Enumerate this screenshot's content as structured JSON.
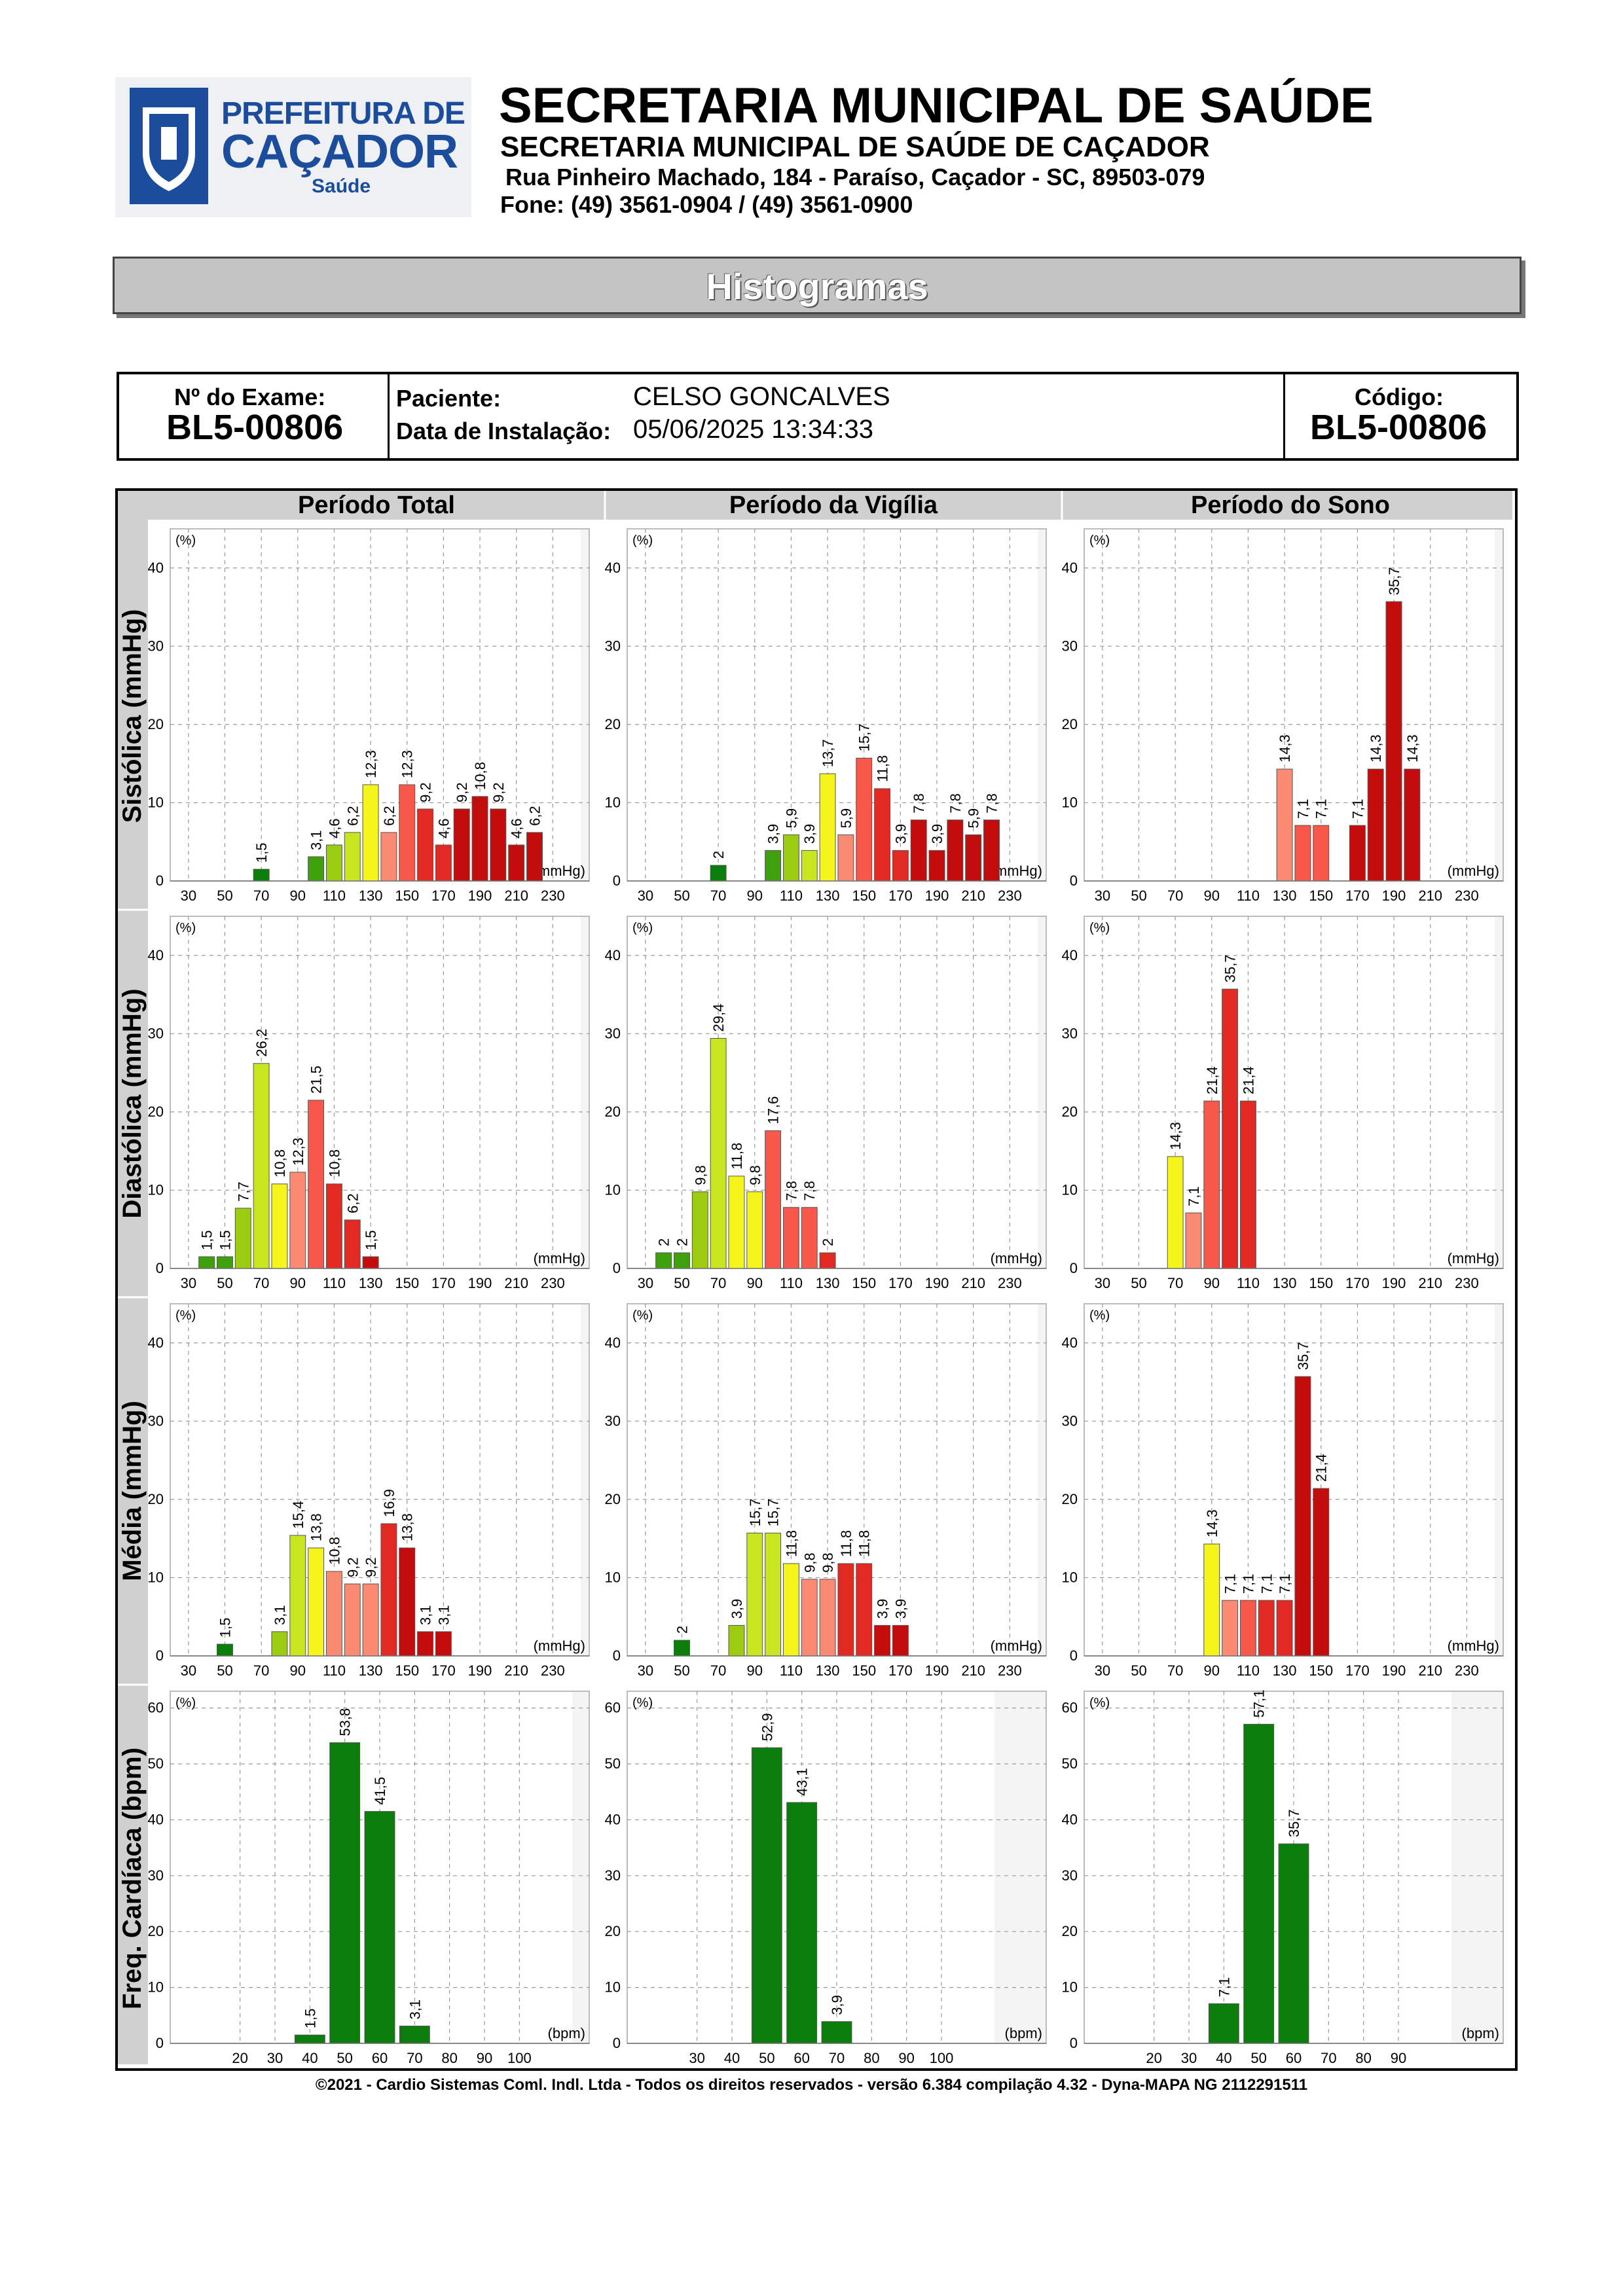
{
  "header": {
    "logo_line1": "PREFEITURA DE",
    "logo_line2": "CAÇADOR",
    "logo_line3": "Saúde",
    "title": "SECRETARIA MUNICIPAL DE SAÚDE",
    "subtitle": "SECRETARIA MUNICIPAL DE SAÚDE DE CAÇADOR",
    "address": "Rua Pinheiro Machado, 184 - Paraíso, Caçador - SC, 89503-079",
    "phone": "Fone: (49) 3561-0904  / (49) 3561-0900"
  },
  "banner": "Histogramas",
  "exam": {
    "exam_label": "Nº do Exame:",
    "exam_number": "BL5-00806",
    "patient_label": "Paciente:",
    "patient_name": "CELSO  GONCALVES",
    "install_label": "Data de Instalação:",
    "install_date": "05/06/2025 13:34:33",
    "code_label": "Código:",
    "code": "BL5-00806"
  },
  "footer": "©2021 - Cardio Sistemas Coml. Indl. Ltda - Todos os direitos reservados - versão 6.384 compilação 4.32 - Dyna-MAPA NG 2112291511",
  "colors": {
    "dark_green": "#0a7d0a",
    "green": "#3fa00e",
    "yellow_green": "#9ccc12",
    "lime": "#c8e620",
    "yellow": "#f5f51c",
    "salmon": "#fa8a72",
    "coral": "#f7584a",
    "red": "#e22a22",
    "dark_red": "#c30d0d",
    "crimson": "#a8070d"
  },
  "chart_data": {
    "columns": [
      "Período Total",
      "Período da Vigília",
      "Período do Sono"
    ],
    "rows": [
      {
        "name": "Sistólica (mmHg)",
        "unit": "(mmHg)",
        "y_unit": "(%)",
        "ylim": [
          0,
          45
        ],
        "yticks": [
          0,
          10,
          20,
          30,
          40
        ],
        "xlim": [
          20,
          250
        ],
        "bin_width": 10,
        "xticks": [
          30,
          50,
          70,
          90,
          110,
          130,
          150,
          170,
          190,
          210,
          230
        ],
        "charts": [
          {
            "bars": [
              [
                70,
                "1,5",
                1.5,
                "dark_green"
              ],
              [
                100,
                "3,1",
                3.1,
                "green"
              ],
              [
                110,
                "4,6",
                4.6,
                "yellow_green"
              ],
              [
                120,
                "6,2",
                6.2,
                "lime"
              ],
              [
                130,
                "12,3",
                12.3,
                "yellow"
              ],
              [
                140,
                "6,2",
                6.2,
                "salmon"
              ],
              [
                150,
                "12,3",
                12.3,
                "coral"
              ],
              [
                160,
                "9,2",
                9.2,
                "red"
              ],
              [
                170,
                "4,6",
                4.6,
                "red"
              ],
              [
                180,
                "9,2",
                9.2,
                "dark_red"
              ],
              [
                190,
                "10,8",
                10.8,
                "dark_red"
              ],
              [
                200,
                "9,2",
                9.2,
                "dark_red"
              ],
              [
                210,
                "4,6",
                4.6,
                "dark_red"
              ],
              [
                220,
                "6,2",
                6.2,
                "dark_red"
              ]
            ]
          },
          {
            "bars": [
              [
                70,
                "2",
                2,
                "dark_green"
              ],
              [
                100,
                "3,9",
                3.9,
                "green"
              ],
              [
                110,
                "5,9",
                5.9,
                "yellow_green"
              ],
              [
                120,
                "3,9",
                3.9,
                "lime"
              ],
              [
                130,
                "13,7",
                13.7,
                "yellow"
              ],
              [
                140,
                "5,9",
                5.9,
                "salmon"
              ],
              [
                150,
                "15,7",
                15.7,
                "coral"
              ],
              [
                160,
                "11,8",
                11.8,
                "red"
              ],
              [
                170,
                "3,9",
                3.9,
                "red"
              ],
              [
                180,
                "7,8",
                7.8,
                "dark_red"
              ],
              [
                190,
                "3,9",
                3.9,
                "dark_red"
              ],
              [
                200,
                "7,8",
                7.8,
                "dark_red"
              ],
              [
                210,
                "5,9",
                5.9,
                "dark_red"
              ],
              [
                220,
                "7,8",
                7.8,
                "dark_red"
              ]
            ]
          },
          {
            "bars": [
              [
                130,
                "14,3",
                14.3,
                "salmon"
              ],
              [
                140,
                "7,1",
                7.1,
                "coral"
              ],
              [
                150,
                "7,1",
                7.1,
                "coral"
              ],
              [
                170,
                "7,1",
                7.1,
                "dark_red"
              ],
              [
                180,
                "14,3",
                14.3,
                "dark_red"
              ],
              [
                190,
                "35,7",
                35.7,
                "dark_red"
              ],
              [
                200,
                "14,3",
                14.3,
                "dark_red"
              ]
            ]
          }
        ]
      },
      {
        "name": "Diastólica (mmHg)",
        "unit": "(mmHg)",
        "y_unit": "(%)",
        "ylim": [
          0,
          45
        ],
        "yticks": [
          0,
          10,
          20,
          30,
          40
        ],
        "xlim": [
          20,
          250
        ],
        "bin_width": 10,
        "xticks": [
          30,
          50,
          70,
          90,
          110,
          130,
          150,
          170,
          190,
          210,
          230
        ],
        "charts": [
          {
            "bars": [
              [
                40,
                "1,5",
                1.5,
                "green"
              ],
              [
                50,
                "1,5",
                1.5,
                "green"
              ],
              [
                60,
                "7,7",
                7.7,
                "yellow_green"
              ],
              [
                70,
                "26,2",
                26.2,
                "lime"
              ],
              [
                80,
                "10,8",
                10.8,
                "yellow"
              ],
              [
                90,
                "12,3",
                12.3,
                "salmon"
              ],
              [
                100,
                "21,5",
                21.5,
                "coral"
              ],
              [
                110,
                "10,8",
                10.8,
                "red"
              ],
              [
                120,
                "6,2",
                6.2,
                "red"
              ],
              [
                130,
                "1,5",
                1.5,
                "dark_red"
              ]
            ]
          },
          {
            "bars": [
              [
                40,
                "2",
                2,
                "green"
              ],
              [
                50,
                "2",
                2,
                "green"
              ],
              [
                60,
                "9,8",
                9.8,
                "yellow_green"
              ],
              [
                70,
                "29,4",
                29.4,
                "lime"
              ],
              [
                80,
                "11,8",
                11.8,
                "yellow"
              ],
              [
                90,
                "9,8",
                9.8,
                "yellow"
              ],
              [
                100,
                "17,6",
                17.6,
                "coral"
              ],
              [
                110,
                "7,8",
                7.8,
                "coral"
              ],
              [
                120,
                "7,8",
                7.8,
                "coral"
              ],
              [
                130,
                "2",
                2,
                "red"
              ]
            ]
          },
          {
            "bars": [
              [
                70,
                "14,3",
                14.3,
                "yellow"
              ],
              [
                80,
                "7,1",
                7.1,
                "salmon"
              ],
              [
                90,
                "21,4",
                21.4,
                "coral"
              ],
              [
                100,
                "35,7",
                35.7,
                "red"
              ],
              [
                110,
                "21,4",
                21.4,
                "red"
              ]
            ]
          }
        ]
      },
      {
        "name": "Média (mmHg)",
        "unit": "(mmHg)",
        "y_unit": "(%)",
        "ylim": [
          0,
          45
        ],
        "yticks": [
          0,
          10,
          20,
          30,
          40
        ],
        "xlim": [
          20,
          250
        ],
        "bin_width": 10,
        "xticks": [
          30,
          50,
          70,
          90,
          110,
          130,
          150,
          170,
          190,
          210,
          230
        ],
        "charts": [
          {
            "bars": [
              [
                50,
                "1,5",
                1.5,
                "dark_green"
              ],
              [
                80,
                "3,1",
                3.1,
                "yellow_green"
              ],
              [
                90,
                "15,4",
                15.4,
                "lime"
              ],
              [
                100,
                "13,8",
                13.8,
                "yellow"
              ],
              [
                110,
                "10,8",
                10.8,
                "salmon"
              ],
              [
                120,
                "9,2",
                9.2,
                "salmon"
              ],
              [
                130,
                "9,2",
                9.2,
                "salmon"
              ],
              [
                140,
                "16,9",
                16.9,
                "red"
              ],
              [
                150,
                "13,8",
                13.8,
                "dark_red"
              ],
              [
                160,
                "3,1",
                3.1,
                "dark_red"
              ],
              [
                170,
                "3,1",
                3.1,
                "dark_red"
              ]
            ]
          },
          {
            "bars": [
              [
                50,
                "2",
                2,
                "dark_green"
              ],
              [
                80,
                "3,9",
                3.9,
                "yellow_green"
              ],
              [
                90,
                "15,7",
                15.7,
                "lime"
              ],
              [
                100,
                "15,7",
                15.7,
                "lime"
              ],
              [
                110,
                "11,8",
                11.8,
                "yellow"
              ],
              [
                120,
                "9,8",
                9.8,
                "salmon"
              ],
              [
                130,
                "9,8",
                9.8,
                "salmon"
              ],
              [
                140,
                "11,8",
                11.8,
                "red"
              ],
              [
                150,
                "11,8",
                11.8,
                "red"
              ],
              [
                160,
                "3,9",
                3.9,
                "dark_red"
              ],
              [
                170,
                "3,9",
                3.9,
                "dark_red"
              ]
            ]
          },
          {
            "bars": [
              [
                90,
                "14,3",
                14.3,
                "yellow"
              ],
              [
                100,
                "7,1",
                7.1,
                "salmon"
              ],
              [
                110,
                "7,1",
                7.1,
                "coral"
              ],
              [
                120,
                "7,1",
                7.1,
                "red"
              ],
              [
                130,
                "7,1",
                7.1,
                "red"
              ],
              [
                140,
                "35,7",
                35.7,
                "dark_red"
              ],
              [
                150,
                "21,4",
                21.4,
                "dark_red"
              ]
            ]
          }
        ]
      },
      {
        "name": "Freq. Cardíaca (bpm)",
        "unit": "(bpm)",
        "y_unit": "(%)",
        "ylim": [
          0,
          63
        ],
        "yticks": [
          0,
          10,
          20,
          30,
          40,
          50,
          60
        ],
        "bin_width": 10,
        "charts": [
          {
            "xlim": [
              0,
              120
            ],
            "xticks": [
              20,
              30,
              40,
              50,
              60,
              70,
              80,
              90,
              100
            ],
            "bars": [
              [
                40,
                "1,5",
                1.5,
                "dark_green"
              ],
              [
                50,
                "53,8",
                53.8,
                "dark_green"
              ],
              [
                60,
                "41,5",
                41.5,
                "dark_green"
              ],
              [
                70,
                "3,1",
                3.1,
                "dark_green"
              ]
            ]
          },
          {
            "xlim": [
              10,
              130
            ],
            "xticks": [
              30,
              40,
              50,
              60,
              70,
              80,
              90,
              100
            ],
            "bars": [
              [
                50,
                "52,9",
                52.9,
                "dark_green"
              ],
              [
                60,
                "43,1",
                43.1,
                "dark_green"
              ],
              [
                70,
                "3,9",
                3.9,
                "dark_green"
              ]
            ]
          },
          {
            "xlim": [
              0,
              120
            ],
            "xticks": [
              20,
              30,
              40,
              50,
              60,
              70,
              80,
              90
            ],
            "bars": [
              [
                40,
                "7,1",
                7.1,
                "dark_green"
              ],
              [
                50,
                "57,1",
                57.1,
                "dark_green"
              ],
              [
                60,
                "35,7",
                35.7,
                "dark_green"
              ]
            ]
          }
        ]
      }
    ]
  }
}
